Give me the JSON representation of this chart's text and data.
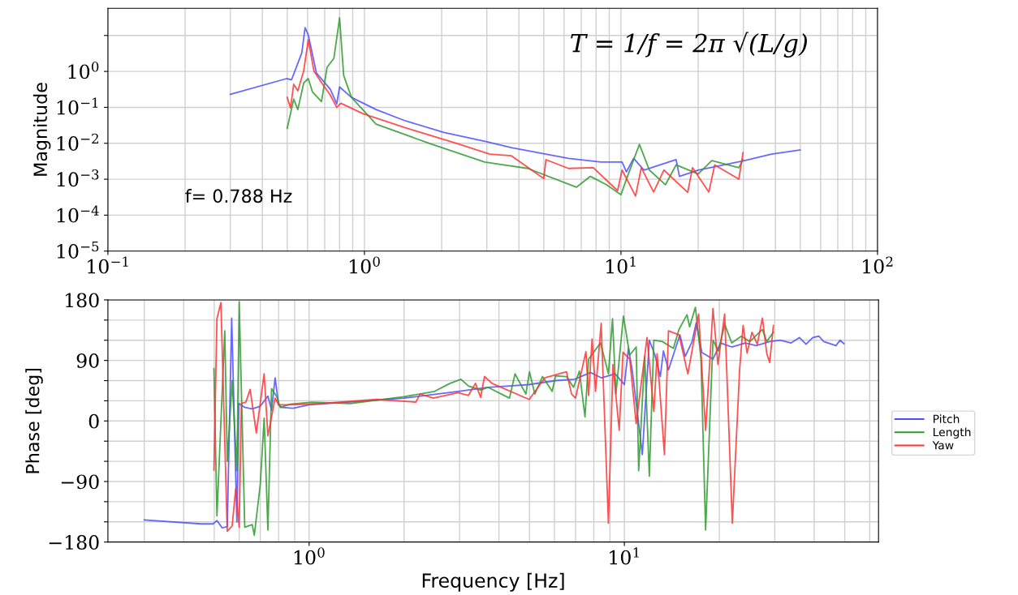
{
  "chart_data": [
    {
      "type": "line",
      "ylabel": "Magnitude",
      "log": "xy",
      "grid": true,
      "legend": false,
      "xlim": [
        0.1,
        100
      ],
      "xticks": [
        {
          "value": 0.1,
          "label": "10$^{−1}$"
        },
        {
          "value": 1,
          "label": "10$^{0}$"
        },
        {
          "value": 10,
          "label": "10$^{1}$"
        },
        {
          "value": 100,
          "label": "10$^{2}$"
        }
      ],
      "ylim": [
        1e-05,
        57
      ],
      "yticks": [
        {
          "value": 1e-05,
          "label": "10$^{−5}$"
        },
        {
          "value": 0.0001,
          "label": "10$^{−4}$"
        },
        {
          "value": 0.001,
          "label": "10$^{−3}$"
        },
        {
          "value": 0.01,
          "label": "10$^{−2}$"
        },
        {
          "value": 0.1,
          "label": "10$^{−1}$"
        },
        {
          "value": 1,
          "label": "10$^{0}$"
        },
        {
          "value": 10,
          "label": null
        }
      ],
      "annotations": [
        "f= 0.788 Hz",
        "T = 1/f = 2π √(L/g)"
      ],
      "series": [
        {
          "color": "#4d4dff",
          "x": [
            0.3,
            0.497,
            0.52,
            0.57,
            0.587,
            0.604,
            0.65,
            0.736,
            0.78,
            0.8,
            0.89,
            1.11,
            1.42,
            2.04,
            3.0,
            3.74,
            6.24,
            8.35,
            10.1,
            10.5,
            11.2,
            12.3,
            16.4,
            16.9,
            20,
            30.3,
            38.6,
            49.9
          ],
          "values": [
            0.23,
            0.63,
            0.59,
            3.3,
            16.5,
            10.4,
            0.9,
            0.32,
            0.125,
            0.37,
            0.19,
            0.087,
            0.044,
            0.02,
            0.011,
            0.0076,
            0.0038,
            0.003,
            0.003,
            0.0016,
            0.0038,
            0.0018,
            0.0035,
            0.0012,
            0.0018,
            0.0033,
            0.005,
            0.0065
          ]
        },
        {
          "color": "#2e9a2e",
          "x": [
            0.5,
            0.53,
            0.55,
            0.58,
            0.604,
            0.627,
            0.68,
            0.715,
            0.76,
            0.8,
            0.83,
            0.89,
            1.11,
            1.8,
            2.94,
            3.48,
            4.33,
            6.7,
            7.6,
            8.8,
            10.0,
            10.6,
            11.8,
            12.9,
            14.9,
            16.4,
            20,
            22.6,
            28.8,
            29.9
          ],
          "values": [
            0.026,
            0.17,
            0.087,
            0.48,
            0.63,
            0.27,
            0.145,
            1.3,
            2.3,
            31,
            0.77,
            0.19,
            0.034,
            0.0098,
            0.003,
            0.0025,
            0.002,
            0.0006,
            0.0012,
            0.0007,
            0.00037,
            0.0012,
            0.0093,
            0.0018,
            0.0007,
            0.0025,
            0.0014,
            0.0033,
            0.0021,
            0.0035
          ]
        },
        {
          "color": "#ff3333",
          "x": [
            0.5,
            0.515,
            0.53,
            0.55,
            0.58,
            0.604,
            0.636,
            0.684,
            0.736,
            0.78,
            0.81,
            0.985,
            1.42,
            2.3,
            3.08,
            3.74,
            5.0,
            5.1,
            6.24,
            7.8,
            9.7,
            10.1,
            11.4,
            12.0,
            13.4,
            14.7,
            18.2,
            19.0,
            22.0,
            23.2,
            28.8,
            29.9
          ],
          "values": [
            0.19,
            0.096,
            0.44,
            0.29,
            1.05,
            7.6,
            1.0,
            0.46,
            0.22,
            0.1,
            0.13,
            0.067,
            0.028,
            0.0098,
            0.005,
            0.0045,
            0.00105,
            0.0035,
            0.002,
            0.0021,
            0.00048,
            0.0018,
            0.00034,
            0.0021,
            0.00044,
            0.0018,
            0.00043,
            0.0021,
            0.00044,
            0.0025,
            0.001,
            0.0055
          ]
        }
      ]
    },
    {
      "type": "line",
      "xlabel": "Frequency [Hz]",
      "ylabel": "Phase [deg]",
      "log": "x",
      "grid": true,
      "legend": "right",
      "xlim": [
        0.23,
        64
      ],
      "xticks": [
        {
          "value": 1,
          "label": "10$^{0}$"
        },
        {
          "value": 10,
          "label": "10$^{1}$"
        }
      ],
      "ylim": [
        -180,
        180
      ],
      "yticks": [
        {
          "value": -180,
          "label": "−180"
        },
        {
          "value": -150,
          "label": null
        },
        {
          "value": -120,
          "label": null
        },
        {
          "value": -90,
          "label": "−90"
        },
        {
          "value": -60,
          "label": null
        },
        {
          "value": -30,
          "label": null
        },
        0,
        {
          "value": 30,
          "label": null
        },
        {
          "value": 60,
          "label": null
        },
        90,
        {
          "value": 120,
          "label": null
        },
        {
          "value": 150,
          "label": null
        },
        180
      ],
      "series": [
        {
          "name": "Pitch",
          "color": "#4d4dff",
          "x": [
            0.3,
            0.454,
            0.496,
            0.51,
            0.53,
            0.55,
            0.568,
            0.59,
            0.598,
            0.627,
            0.66,
            0.7,
            0.74,
            0.76,
            0.78,
            0.8,
            0.82,
            0.89,
            1.0,
            2.0,
            2.97,
            3.69,
            4.32,
            4.97,
            6.05,
            6.95,
            7.8,
            8.47,
            9.35,
            10.0,
            10.3,
            10.6,
            11.4,
            12.0,
            12.5,
            13.0,
            13.3,
            13.8,
            15.0,
            15.6,
            16.4,
            16.9,
            17.6,
            19.1,
            20.2,
            21.9,
            24.2,
            26.2,
            28.9,
            31.2,
            33.8,
            35.9,
            37.7,
            39.6,
            41.4,
            42.9,
            46.9,
            48.3,
            49.7
          ],
          "values": [
            -147,
            -153,
            -153,
            -148,
            -159,
            -157,
            153,
            -150,
            26,
            20,
            18,
            22,
            37,
            16,
            64,
            24,
            20,
            19,
            24,
            34,
            44,
            50,
            52,
            54,
            60,
            62,
            72,
            64,
            70,
            54,
            108,
            74,
            -50,
            120,
            98,
            66,
            104,
            76,
            128,
            96,
            118,
            146,
            102,
            92,
            116,
            110,
            116,
            112,
            118,
            120,
            116,
            124,
            114,
            124,
            126,
            118,
            112,
            120,
            115
          ]
        },
        {
          "name": "Length",
          "color": "#2e9a2e",
          "x": [
            0.499,
            0.51,
            0.54,
            0.55,
            0.57,
            0.59,
            0.6,
            0.625,
            0.66,
            0.67,
            0.7,
            0.72,
            0.74,
            0.76,
            0.79,
            0.81,
            0.87,
            1.02,
            1.35,
            2.0,
            2.5,
            2.8,
            3.03,
            3.2,
            3.5,
            3.69,
            4.32,
            4.5,
            4.87,
            5.0,
            5.2,
            5.5,
            5.9,
            6.05,
            6.55,
            6.9,
            7.2,
            7.5,
            7.7,
            8.4,
            8.9,
            9.17,
            9.4,
            9.93,
            10.4,
            10.9,
            11.1,
            11.6,
            12.0,
            12.4,
            13.2,
            14.3,
            14.9,
            15.8,
            16.1,
            16.8,
            17.5,
            18.1,
            19.1,
            19.9,
            20.8,
            21.9,
            23.5,
            25.0,
            27.4,
            28.3,
            29.7
          ],
          "values": [
            78,
            -141,
            134,
            -60,
            60,
            -74,
            177,
            -158,
            -154,
            -170,
            -94,
            4,
            -162,
            48,
            36,
            20,
            25,
            28,
            26,
            36,
            44,
            56,
            62,
            52,
            46,
            50,
            34,
            70,
            40,
            73,
            40,
            66,
            44,
            67,
            66,
            50,
            74,
            6,
            92,
            116,
            70,
            152,
            40,
            156,
            98,
            110,
            -74,
            96,
            -82,
            120,
            118,
            108,
            136,
            158,
            140,
            169,
            92,
            -162,
            120,
            104,
            144,
            116,
            126,
            118,
            136,
            118,
            132
          ]
        },
        {
          "name": "Yaw",
          "color": "#ff3333",
          "x": [
            0.499,
            0.51,
            0.525,
            0.55,
            0.57,
            0.585,
            0.6,
            0.61,
            0.63,
            0.65,
            0.68,
            0.72,
            0.74,
            0.78,
            0.8,
            0.87,
            1.1,
            1.64,
            2.18,
            2.25,
            2.48,
            2.97,
            3.2,
            3.37,
            3.5,
            3.6,
            3.8,
            4.99,
            5.59,
            6.55,
            6.8,
            7.0,
            7.55,
            7.7,
            7.9,
            8.1,
            8.44,
            8.9,
            9.2,
            9.63,
            9.9,
            10.4,
            10.9,
            11.8,
            12.4,
            12.7,
            13.4,
            13.8,
            14.9,
            15.9,
            17.2,
            18.1,
            19.1,
            19.8,
            20.8,
            22.0,
            23.2,
            23.8,
            24.5,
            25.4,
            26.4,
            27.4,
            28.3,
            28.9,
            29.7
          ],
          "values": [
            -73,
            152,
            176,
            -164,
            -156,
            -100,
            -158,
            26,
            28,
            47,
            -18,
            70,
            -22,
            34,
            24,
            24,
            26,
            32,
            28,
            40,
            34,
            42,
            38,
            56,
            35,
            66,
            56,
            32,
            64,
            73,
            40,
            34,
            103,
            38,
            122,
            44,
            145,
            -152,
            84,
            -14,
            102,
            92,
            -4,
            124,
            14,
            100,
            -50,
            134,
            128,
            70,
            159,
            -14,
            167,
            84,
            159,
            -152,
            76,
            142,
            101,
            132,
            114,
            153,
            100,
            87,
            142
          ]
        }
      ]
    }
  ]
}
